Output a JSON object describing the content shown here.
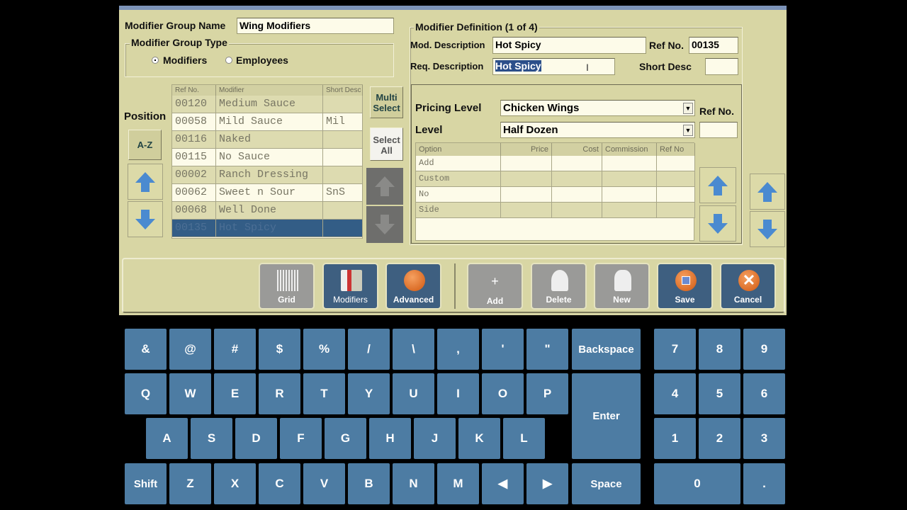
{
  "group": {
    "name_label": "Modifier Group Name",
    "name_value": "Wing Modifiers",
    "type_label": "Modifier Group Type",
    "radio_modifiers": "Modifiers",
    "radio_employees": "Employees",
    "selected_type": "Modifiers"
  },
  "left": {
    "position_label": "Position",
    "az": "A-Z",
    "multi_select": "Multi Select",
    "select_all": "Select All",
    "columns": [
      "Ref No.",
      "Modifier",
      "Short Desc"
    ],
    "rows": [
      [
        "00120",
        "Medium Sauce",
        ""
      ],
      [
        "00058",
        "Mild Sauce",
        "Mil"
      ],
      [
        "00116",
        "Naked",
        ""
      ],
      [
        "00115",
        "No Sauce",
        ""
      ],
      [
        "00002",
        "Ranch Dressing",
        ""
      ],
      [
        "00062",
        "Sweet n Sour",
        "SnS"
      ],
      [
        "00068",
        "Well Done",
        ""
      ],
      [
        "00135",
        "Hot Spicy",
        ""
      ]
    ]
  },
  "definition": {
    "title": "Modifier Definition (1 of 4)",
    "mod_desc_label": "Mod. Description",
    "mod_desc": "Hot Spicy",
    "ref_label": "Ref No.",
    "ref_value": "00135",
    "req_desc_label": "Req. Description",
    "req_desc": "Hot Spicy",
    "short_label": "Short Desc",
    "short_value": "",
    "pricing_label": "Pricing Level",
    "pricing_value": "Chicken Wings",
    "level_label": "Level",
    "level_value": "Half Dozen",
    "ref2_label": "Ref No.",
    "columns": [
      "Option",
      "Price",
      "Cost",
      "Commission",
      "Ref No"
    ],
    "options": [
      "Add",
      "Custom",
      "No",
      "Side"
    ]
  },
  "toolbar": {
    "grid": "Grid",
    "modifiers": "Modifiers",
    "advanced": "Advanced",
    "add": "Add",
    "add_symbol": "+",
    "delete": "Delete",
    "new": "New",
    "save": "Save",
    "cancel": "Cancel"
  },
  "keyboard": {
    "row1": [
      "&",
      "@",
      "#",
      "$",
      "%",
      "/",
      "\\",
      ",",
      "'",
      "\""
    ],
    "row2": [
      "Q",
      "W",
      "E",
      "R",
      "T",
      "Y",
      "U",
      "I",
      "O",
      "P"
    ],
    "row3": [
      "A",
      "S",
      "D",
      "F",
      "G",
      "H",
      "J",
      "K",
      "L"
    ],
    "row4": [
      "Z",
      "X",
      "C",
      "V",
      "B",
      "N",
      "M",
      "◀",
      "▶"
    ],
    "backspace": "Backspace",
    "enter": "Enter",
    "shift": "Shift",
    "space": "Space",
    "numpad": [
      [
        "7",
        "8",
        "9"
      ],
      [
        "4",
        "5",
        "6"
      ],
      [
        "1",
        "2",
        "3"
      ]
    ],
    "zero": "0",
    "dot": "."
  },
  "colors": {
    "panel": "#d8d6a4",
    "key": "#4d7ca3",
    "selected_row": "#335d86",
    "arrow": "#4a8ad0"
  }
}
